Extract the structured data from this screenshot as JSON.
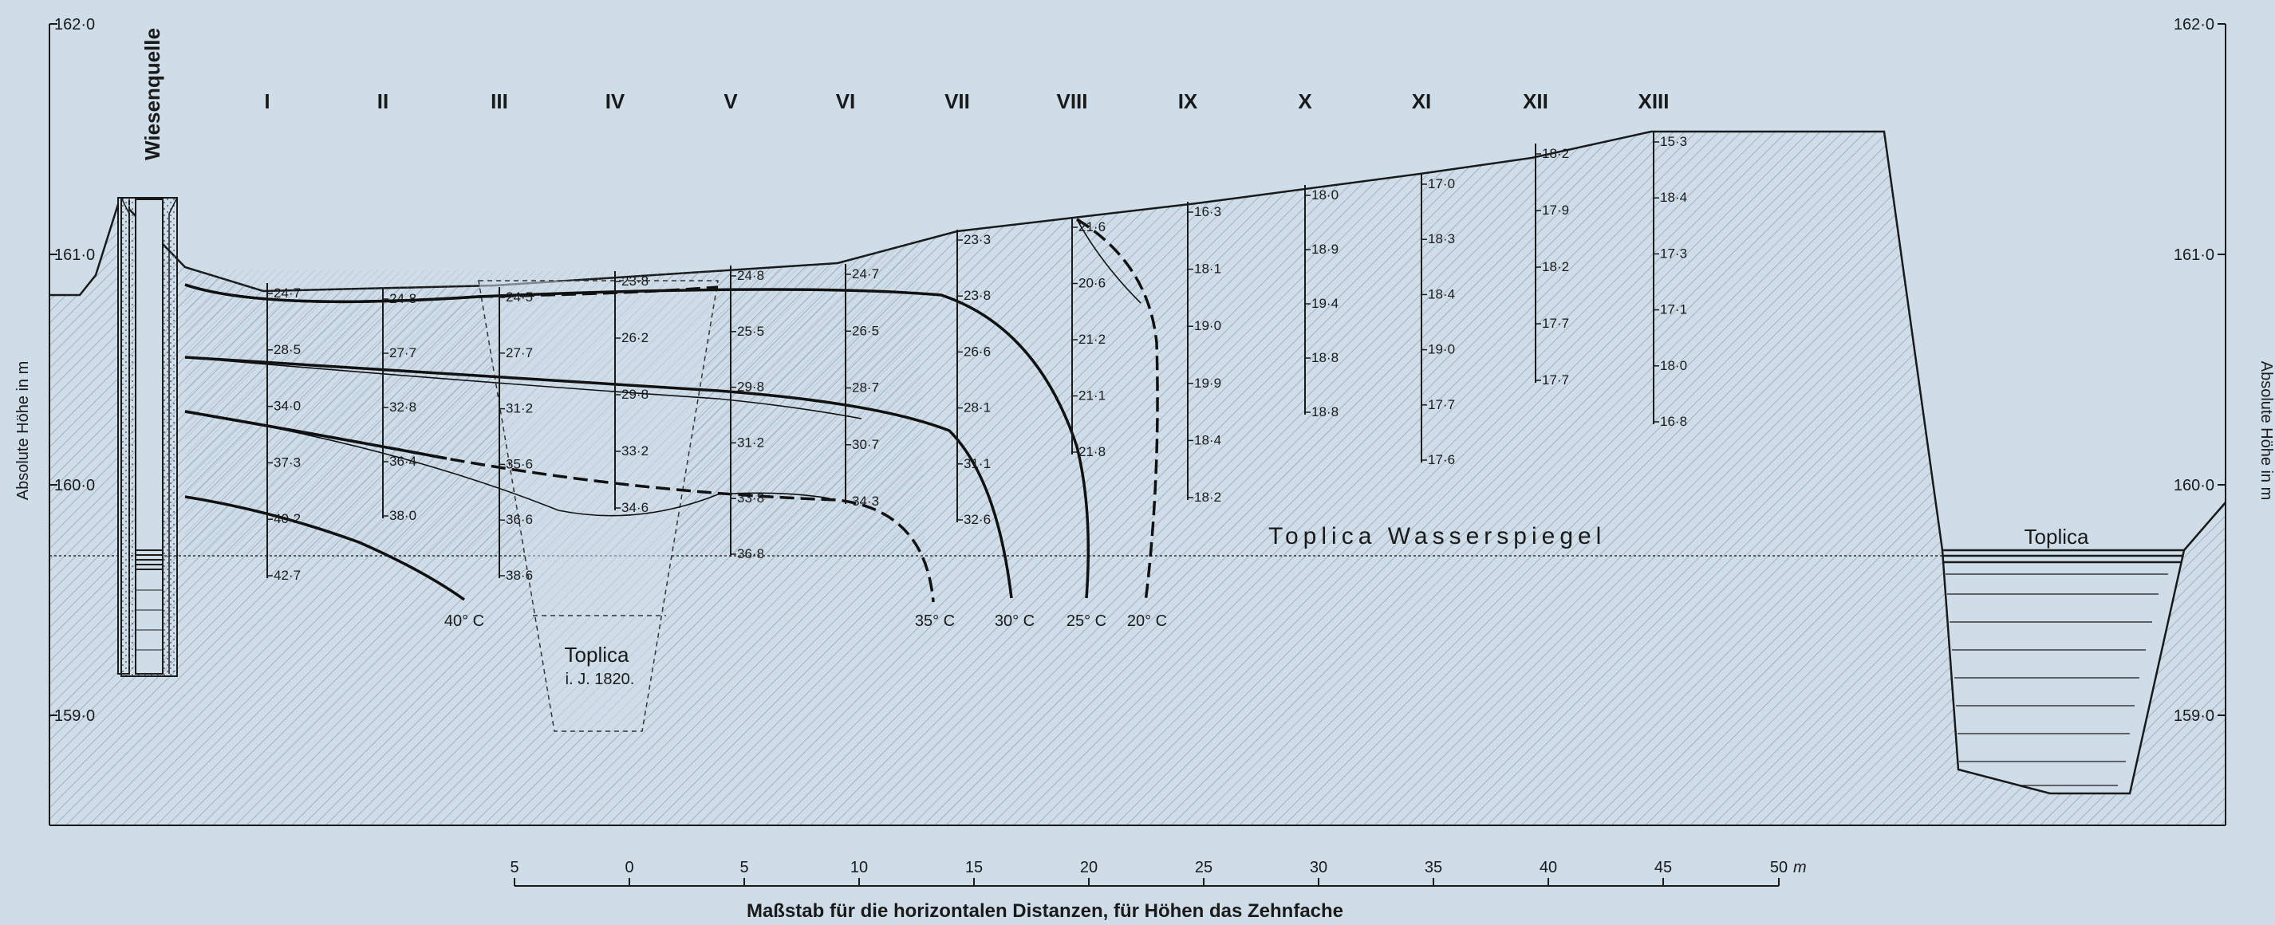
{
  "y_axis": {
    "label": "Absolute Höhe in m",
    "ticks": [
      {
        "value": 162.0,
        "label": "162·0"
      },
      {
        "value": 161.0,
        "label": "161·0"
      },
      {
        "value": 160.0,
        "label": "160·0"
      },
      {
        "value": 159.0,
        "label": "159·0"
      }
    ]
  },
  "spring_label": "Wiesenquelle",
  "water_level_label": "Toplica Wasserspiegel",
  "river_label": "Toplica",
  "old_river_label": "Toplica",
  "old_river_year": "i. J. 1820.",
  "scale": {
    "caption": "Maßstab für die horizontalen Distanzen, für Höhen das Zehnfache",
    "unit": "m",
    "labels": [
      "5",
      "0",
      "5",
      "10",
      "15",
      "20",
      "25",
      "30",
      "35",
      "40",
      "45",
      "50"
    ]
  },
  "isotherms": [
    "40° C",
    "35° C",
    "30° C",
    "25° C",
    "20° C"
  ],
  "boreholes": [
    {
      "id": "I",
      "temps": [
        "24·7",
        "28·5",
        "34·0",
        "37·3",
        "40·2",
        "42·7"
      ]
    },
    {
      "id": "II",
      "temps": [
        "24·8",
        "27·7",
        "32·8",
        "36·4",
        "38·0"
      ]
    },
    {
      "id": "III",
      "temps": [
        "24·5",
        "27·7",
        "31·2",
        "35·6",
        "36·6",
        "38·6"
      ]
    },
    {
      "id": "IV",
      "temps": [
        "23·8",
        "26·2",
        "29·8",
        "33·2",
        "34·6"
      ]
    },
    {
      "id": "V",
      "temps": [
        "24·8",
        "25·5",
        "29·8",
        "31·2",
        "33·8",
        "36·8"
      ]
    },
    {
      "id": "VI",
      "temps": [
        "24·7",
        "26·5",
        "28·7",
        "30·7",
        "34·3"
      ]
    },
    {
      "id": "VII",
      "temps": [
        "23·3",
        "23·8",
        "26·6",
        "28·1",
        "31·1",
        "32·6"
      ]
    },
    {
      "id": "VIII",
      "temps": [
        "21·6",
        "20·6",
        "21·2",
        "21·1",
        "21·8"
      ]
    },
    {
      "id": "IX",
      "temps": [
        "16·3",
        "18·1",
        "19·0",
        "19·9",
        "18·4",
        "18·2"
      ]
    },
    {
      "id": "X",
      "temps": [
        "18·0",
        "18·9",
        "19·4",
        "18·8",
        "18·8"
      ]
    },
    {
      "id": "XI",
      "temps": [
        "17·0",
        "18·3",
        "18·4",
        "19·0",
        "17·7",
        "17·6"
      ]
    },
    {
      "id": "XII",
      "temps": [
        "18·2",
        "17·9",
        "18·2",
        "17·7",
        "17·7"
      ]
    },
    {
      "id": "XIII",
      "temps": [
        "15·3",
        "18·4",
        "17·3",
        "17·1",
        "18·0",
        "16·8"
      ]
    }
  ]
}
